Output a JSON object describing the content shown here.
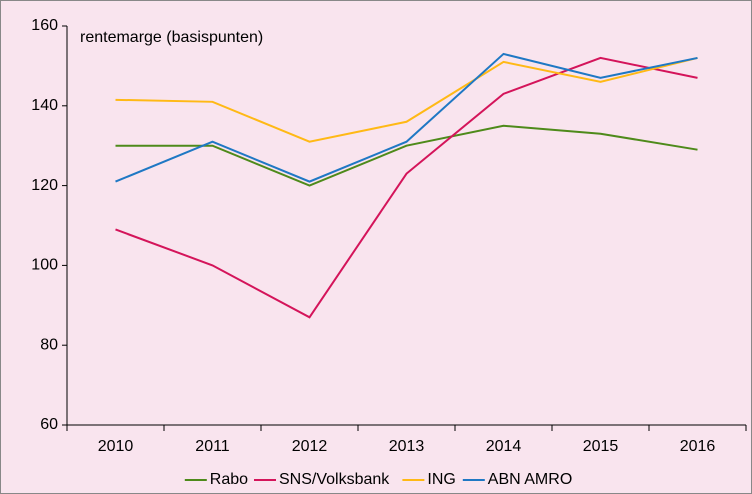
{
  "chart_data": {
    "type": "line",
    "annotation": "rentemarge (basispunten)",
    "categories": [
      "2010",
      "2011",
      "2012",
      "2013",
      "2014",
      "2015",
      "2016"
    ],
    "series": [
      {
        "name": "Rabo",
        "color": "#4e8a1a",
        "values": [
          130,
          130,
          120,
          130,
          135,
          133,
          129
        ]
      },
      {
        "name": "SNS/Volksbank",
        "color": "#d4145a",
        "values": [
          109,
          100,
          87,
          123,
          143,
          152,
          147
        ]
      },
      {
        "name": "ING",
        "color": "#ffb915",
        "values": [
          141.5,
          141,
          131,
          136,
          151,
          146,
          152
        ]
      },
      {
        "name": "ABN AMRO",
        "color": "#1f78c4",
        "values": [
          121,
          131,
          121,
          131,
          153,
          147,
          152
        ]
      }
    ],
    "ylim": [
      60,
      160
    ],
    "yticks": [
      60,
      80,
      100,
      120,
      140,
      160
    ],
    "grid": false,
    "legend": "bottom"
  }
}
